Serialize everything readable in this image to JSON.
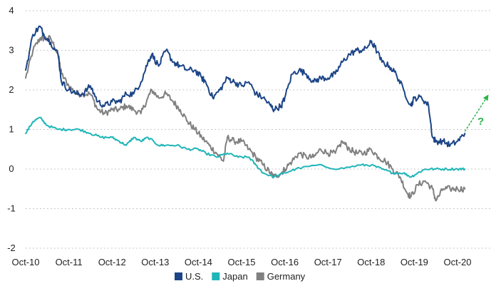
{
  "chart_data": {
    "type": "line",
    "title": "",
    "xlabel": "",
    "ylabel": "",
    "ylim": [
      -2,
      4
    ],
    "yticks": [
      "4",
      "3",
      "2",
      "1",
      "0",
      "-1",
      "-2"
    ],
    "ytick_values": [
      4,
      3,
      2,
      1,
      0,
      -1,
      -2
    ],
    "xticks": [
      "Oct-10",
      "Oct-11",
      "Oct-12",
      "Oct-13",
      "Oct-14",
      "Oct-15",
      "Oct-16",
      "Oct-17",
      "Oct-18",
      "Oct-19",
      "Oct-20"
    ],
    "xlim": [
      2010.75,
      2021.5
    ],
    "grid": "horizontal dotted",
    "legend_position": "bottom-center",
    "series": [
      {
        "name": "U.S.",
        "color": "#1c4587",
        "x": [
          2010.75,
          2010.92,
          2011.08,
          2011.17,
          2011.33,
          2011.5,
          2011.58,
          2011.75,
          2011.92,
          2012.08,
          2012.25,
          2012.42,
          2012.58,
          2012.75,
          2012.92,
          2013.08,
          2013.25,
          2013.42,
          2013.58,
          2013.67,
          2013.83,
          2014.0,
          2014.17,
          2014.33,
          2014.5,
          2014.67,
          2014.83,
          2014.92,
          2015.08,
          2015.25,
          2015.42,
          2015.58,
          2015.75,
          2015.92,
          2016.08,
          2016.25,
          2016.42,
          2016.5,
          2016.67,
          2016.75,
          2016.92,
          2017.08,
          2017.25,
          2017.42,
          2017.58,
          2017.75,
          2017.92,
          2018.08,
          2018.25,
          2018.42,
          2018.58,
          2018.75,
          2018.83,
          2019.0,
          2019.17,
          2019.33,
          2019.5,
          2019.67,
          2019.75,
          2019.92,
          2020.08,
          2020.17,
          2020.25,
          2020.42,
          2020.58,
          2020.75,
          2020.92
        ],
        "values": [
          2.5,
          3.4,
          3.6,
          3.4,
          3.2,
          2.9,
          2.2,
          2.0,
          1.9,
          1.9,
          2.1,
          1.7,
          1.6,
          1.7,
          1.7,
          1.9,
          1.9,
          2.2,
          2.7,
          2.9,
          2.6,
          3.0,
          2.7,
          2.6,
          2.5,
          2.5,
          2.3,
          2.2,
          1.8,
          2.0,
          2.3,
          2.2,
          2.1,
          2.2,
          1.9,
          1.8,
          1.6,
          1.5,
          1.6,
          1.8,
          2.4,
          2.5,
          2.4,
          2.2,
          2.3,
          2.3,
          2.4,
          2.7,
          2.9,
          3.0,
          3.0,
          3.2,
          3.1,
          2.7,
          2.6,
          2.4,
          2.0,
          1.6,
          1.8,
          1.8,
          1.6,
          0.8,
          0.7,
          0.7,
          0.6,
          0.7,
          0.9
        ]
      },
      {
        "name": "Japan",
        "color": "#20b5b8",
        "x": [
          2010.75,
          2010.92,
          2011.08,
          2011.25,
          2011.5,
          2011.75,
          2012.0,
          2012.25,
          2012.5,
          2012.75,
          2012.92,
          2013.08,
          2013.25,
          2013.42,
          2013.58,
          2013.83,
          2014.0,
          2014.25,
          2014.5,
          2014.75,
          2014.92,
          2015.17,
          2015.42,
          2015.67,
          2015.92,
          2016.08,
          2016.25,
          2016.5,
          2016.75,
          2017.0,
          2017.5,
          2018.0,
          2018.5,
          2018.75,
          2019.0,
          2019.25,
          2019.5,
          2019.67,
          2019.83,
          2020.0,
          2020.25,
          2020.5,
          2020.75,
          2020.92
        ],
        "values": [
          0.9,
          1.2,
          1.3,
          1.1,
          1.0,
          1.0,
          1.0,
          0.9,
          0.8,
          0.8,
          0.7,
          0.6,
          0.8,
          0.7,
          0.8,
          0.6,
          0.6,
          0.6,
          0.5,
          0.5,
          0.4,
          0.3,
          0.4,
          0.3,
          0.3,
          0.1,
          -0.1,
          -0.2,
          -0.1,
          0.0,
          0.1,
          0.0,
          0.1,
          0.1,
          0.0,
          -0.1,
          -0.1,
          -0.2,
          -0.1,
          0.0,
          0.0,
          0.0,
          0.0,
          0.0
        ]
      },
      {
        "name": "Germany",
        "color": "#808080",
        "x": [
          2010.75,
          2010.92,
          2011.08,
          2011.17,
          2011.33,
          2011.5,
          2011.58,
          2011.75,
          2011.92,
          2012.08,
          2012.25,
          2012.42,
          2012.58,
          2012.75,
          2012.92,
          2013.08,
          2013.25,
          2013.42,
          2013.58,
          2013.67,
          2013.83,
          2014.0,
          2014.17,
          2014.33,
          2014.5,
          2014.67,
          2014.83,
          2015.0,
          2015.17,
          2015.33,
          2015.42,
          2015.58,
          2015.75,
          2015.92,
          2016.08,
          2016.25,
          2016.42,
          2016.5,
          2016.67,
          2016.75,
          2016.92,
          2017.08,
          2017.25,
          2017.42,
          2017.58,
          2017.75,
          2017.92,
          2018.08,
          2018.25,
          2018.42,
          2018.58,
          2018.75,
          2018.92,
          2019.08,
          2019.25,
          2019.42,
          2019.58,
          2019.67,
          2019.83,
          2020.0,
          2020.17,
          2020.25,
          2020.42,
          2020.58,
          2020.75,
          2020.92
        ],
        "values": [
          2.3,
          3.0,
          3.3,
          3.3,
          3.3,
          2.9,
          2.4,
          2.1,
          1.9,
          1.9,
          1.9,
          1.5,
          1.4,
          1.5,
          1.5,
          1.6,
          1.5,
          1.4,
          1.8,
          2.0,
          1.8,
          1.9,
          1.7,
          1.5,
          1.2,
          1.0,
          0.8,
          0.6,
          0.4,
          0.2,
          0.8,
          0.7,
          0.7,
          0.5,
          0.3,
          0.1,
          -0.1,
          -0.2,
          -0.1,
          0.0,
          0.2,
          0.4,
          0.3,
          0.3,
          0.5,
          0.4,
          0.4,
          0.7,
          0.5,
          0.4,
          0.4,
          0.5,
          0.3,
          0.2,
          0.0,
          -0.2,
          -0.6,
          -0.7,
          -0.4,
          -0.3,
          -0.5,
          -0.8,
          -0.5,
          -0.5,
          -0.5,
          -0.5
        ]
      }
    ],
    "annotation": {
      "text": "?",
      "color": "#2cb34a",
      "arrow_from": [
        2020.92,
        0.95
      ],
      "arrow_to": [
        2021.45,
        1.85
      ]
    }
  }
}
